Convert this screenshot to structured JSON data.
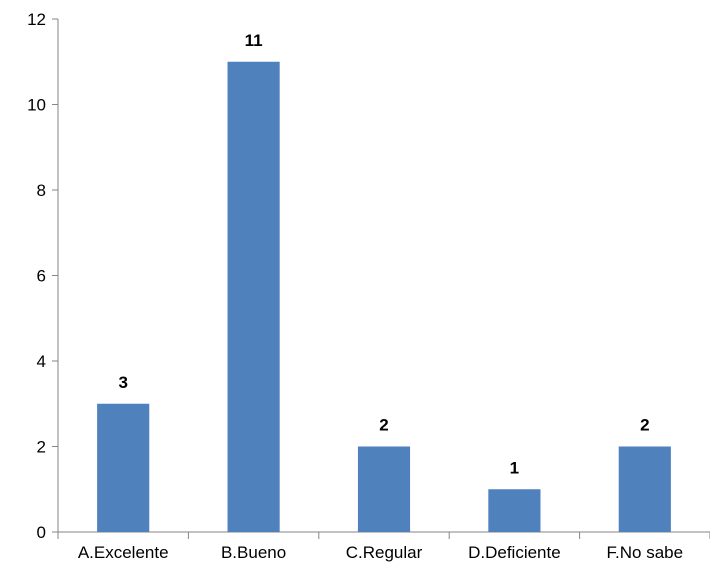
{
  "chart_data": {
    "type": "bar",
    "categories": [
      "A.Excelente",
      "B.Bueno",
      "C.Regular",
      "D.Deficiente",
      "F.No sabe"
    ],
    "values": [
      3,
      11,
      2,
      1,
      2
    ],
    "data_labels": [
      "3",
      "11",
      "2",
      "1",
      "2"
    ],
    "y_ticks": [
      "0",
      "2",
      "4",
      "6",
      "8",
      "10",
      "12"
    ],
    "ylim": [
      0,
      12
    ],
    "grid": false,
    "legend": "none",
    "bar_color": "#4f81bd",
    "axis_color": "#868686"
  }
}
